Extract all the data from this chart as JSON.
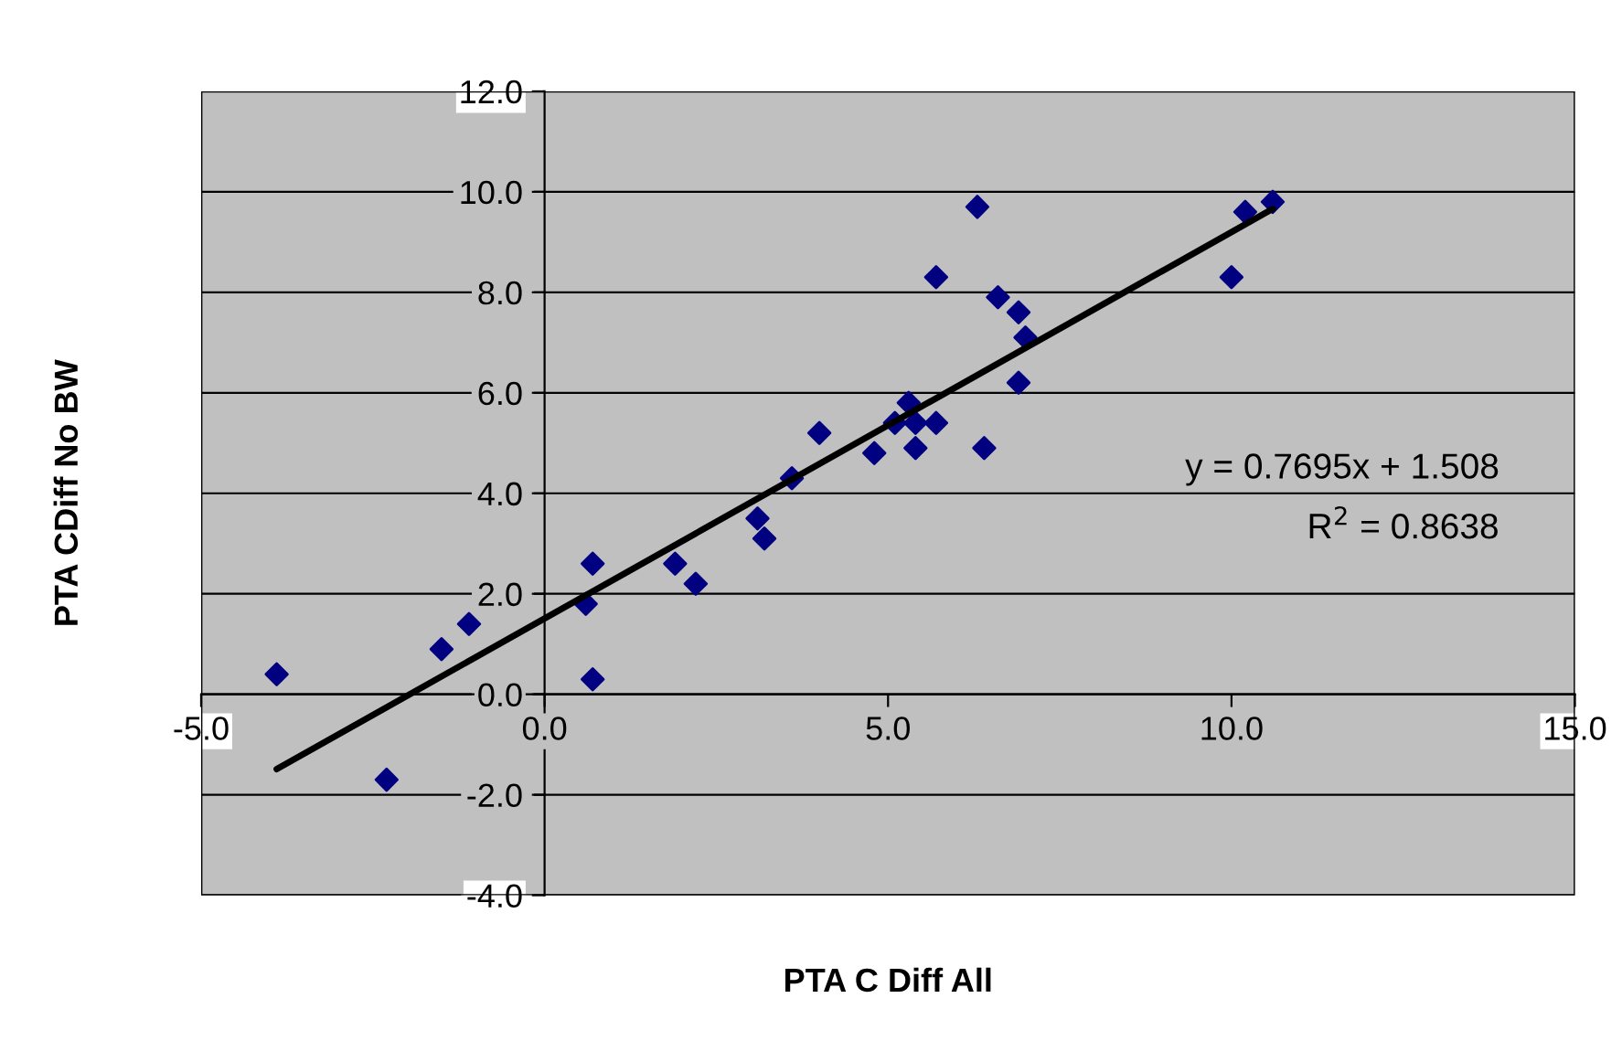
{
  "chart_data": {
    "type": "scatter",
    "xlabel": "PTA C Diff All",
    "ylabel": "PTA CDiff No BW",
    "xlim": [
      -5,
      15
    ],
    "xticks": [
      {
        "value": -5,
        "label": "-5.0"
      },
      {
        "value": 0,
        "label": "0.0"
      },
      {
        "value": 5,
        "label": "5.0"
      },
      {
        "value": 10,
        "label": "10.0"
      },
      {
        "value": 15,
        "label": "15.0"
      }
    ],
    "ylim": [
      -4,
      12
    ],
    "yticks": [
      {
        "value": -4,
        "label": "-4.0"
      },
      {
        "value": -2,
        "label": "-2.0"
      },
      {
        "value": 0,
        "label": "0.0"
      },
      {
        "value": 2,
        "label": "2.0"
      },
      {
        "value": 4,
        "label": "4.0"
      },
      {
        "value": 6,
        "label": "6.0"
      },
      {
        "value": 8,
        "label": "8.0"
      },
      {
        "value": 10,
        "label": "10.0"
      },
      {
        "value": 12,
        "label": "12.0"
      }
    ],
    "grid": "y",
    "series": [
      {
        "type": "scatter",
        "marker": "diamond",
        "color": "#000080",
        "x": [
          -3.9,
          -2.3,
          -1.5,
          -1.1,
          0.6,
          0.7,
          0.7,
          1.9,
          2.2,
          3.1,
          3.2,
          3.6,
          4.0,
          4.8,
          5.1,
          5.3,
          5.4,
          5.4,
          5.7,
          5.7,
          6.3,
          6.4,
          6.6,
          6.9,
          6.9,
          7.0,
          10.0,
          10.2,
          10.6
        ],
        "values": [
          0.4,
          -1.7,
          0.9,
          1.4,
          1.8,
          2.6,
          0.3,
          2.6,
          2.2,
          3.5,
          3.1,
          4.3,
          5.2,
          4.8,
          5.4,
          5.8,
          5.4,
          4.9,
          5.4,
          8.3,
          9.7,
          4.9,
          7.9,
          7.6,
          6.2,
          7.1,
          8.3,
          9.6,
          9.8
        ]
      },
      {
        "type": "line",
        "color": "#000000",
        "x": [
          -3.9,
          10.6
        ],
        "values": [
          -1.49,
          9.66
        ]
      }
    ],
    "annotations": [
      "y = 0.7695x + 1.508",
      "R$^{2}$ = 0.8638"
    ]
  }
}
